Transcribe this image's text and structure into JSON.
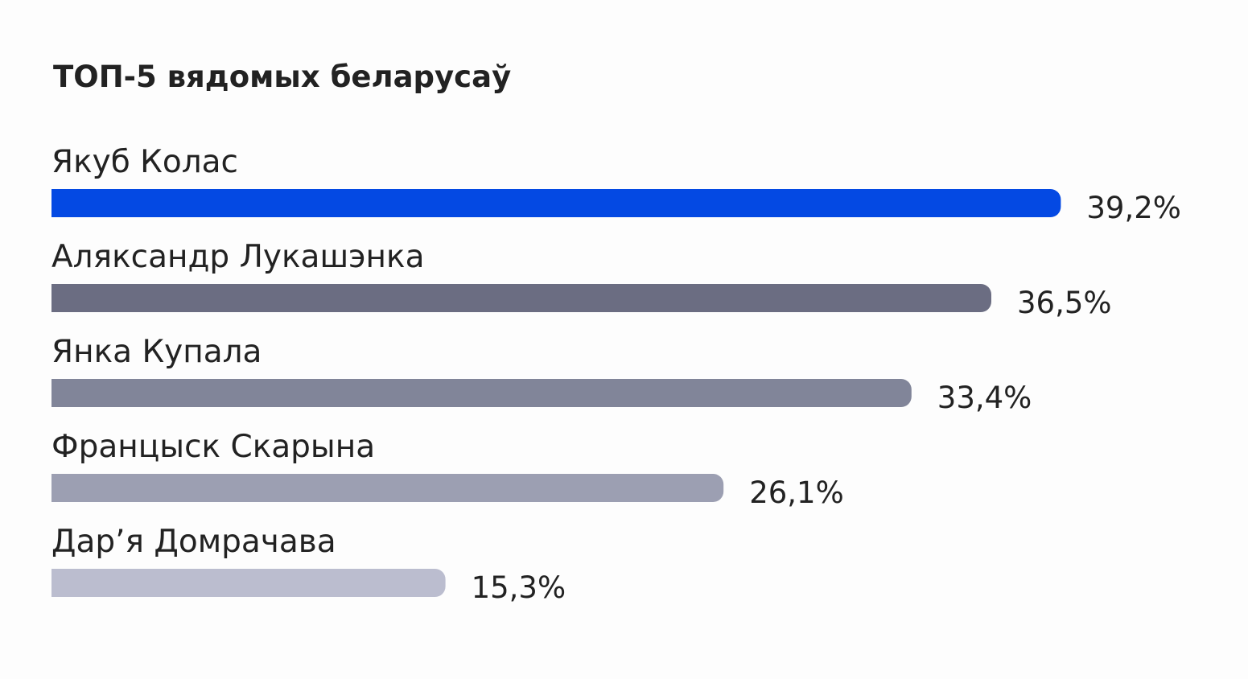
{
  "chart_data": {
    "type": "bar",
    "orientation": "horizontal",
    "title": "ТОП-5 вядомых беларусаў",
    "categories": [
      "Якуб Колас",
      "Аляксандр Лукашэнка",
      "Янка Купала",
      "Францыск Скарына",
      "Дар’я Домрачава"
    ],
    "values": [
      39.2,
      36.5,
      33.4,
      26.1,
      15.3
    ],
    "value_labels": [
      "39,2%",
      "36,5%",
      "33,4%",
      "26,1%",
      "15,3%"
    ],
    "colors": [
      "#0449e3",
      "#6b6d82",
      "#818599",
      "#9c9fb2",
      "#bbbdcf"
    ]
  }
}
